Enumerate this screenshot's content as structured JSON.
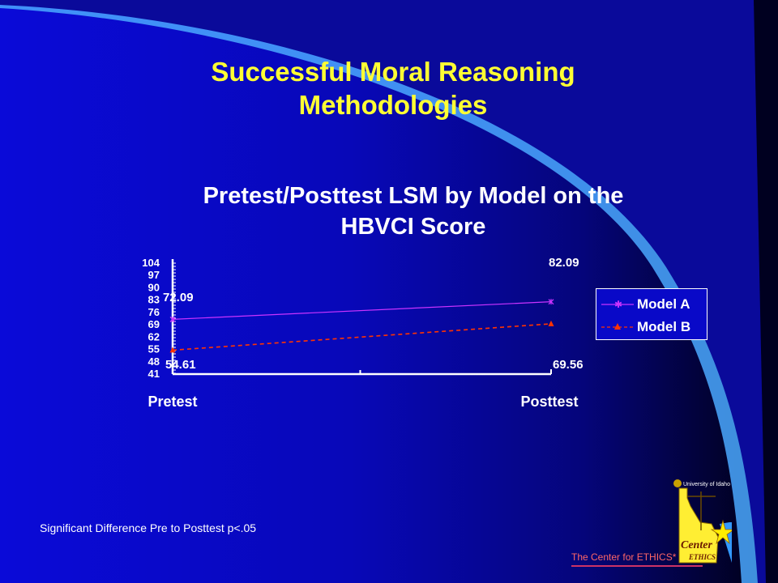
{
  "slide": {
    "title": "Successful Moral Reasoning Methodologies",
    "footnote": "Significant Difference Pre to Posttest p<.05",
    "credit": "The Center for ETHICS*"
  },
  "logo": {
    "university_text": "University of Idaho",
    "center_text": "Center",
    "ethics_text": "ETHICS"
  },
  "colors": {
    "title": "#ffff33",
    "model_a": "#cc33ff",
    "model_b": "#ff3300",
    "credit": "#ff6666"
  },
  "chart_data": {
    "type": "line",
    "title": "Pretest/Posttest LSM by Model on the HBVCI Score",
    "categories": [
      "Pretest",
      "Posttest"
    ],
    "yticks": [
      104,
      97,
      90,
      83,
      76,
      69,
      62,
      55,
      48,
      41
    ],
    "ylim": [
      41,
      104
    ],
    "grid": false,
    "legend_position": "right",
    "series": [
      {
        "name": "Model A",
        "values": [
          72.09,
          82.09
        ],
        "marker": "star",
        "line_style": "solid",
        "color": "#cc33ff"
      },
      {
        "name": "Model B",
        "values": [
          54.61,
          69.56
        ],
        "marker": "triangle",
        "line_style": "dashed",
        "color": "#ff3300"
      }
    ],
    "data_labels": [
      "72.09",
      "82.09",
      "54.61",
      "69.56"
    ]
  }
}
